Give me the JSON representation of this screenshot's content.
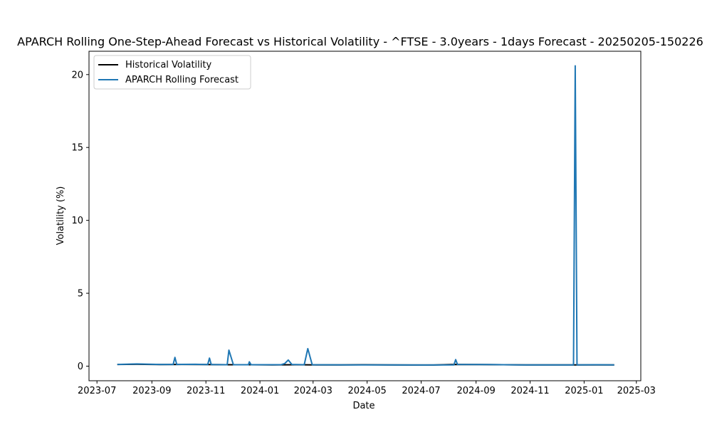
{
  "chart_data": {
    "type": "line",
    "title": "APARCH Rolling One-Step-Ahead Forecast vs Historical Volatility - ^FTSE - 3.0years - 1days Forecast - 20250205-150226",
    "xlabel": "Date",
    "ylabel": "Volatility (%)",
    "xlim": [
      "2023-06-22",
      "2025-03-06"
    ],
    "ylim": [
      -1.0,
      21.6
    ],
    "x_ticks": [
      "2023-07",
      "2023-09",
      "2023-11",
      "2024-01",
      "2024-03",
      "2024-05",
      "2024-07",
      "2024-09",
      "2024-11",
      "2025-01",
      "2025-03"
    ],
    "y_ticks": [
      0,
      5,
      10,
      15,
      20
    ],
    "legend": {
      "placement": "top-left",
      "entries": [
        "Historical Volatility",
        "APARCH Rolling Forecast"
      ]
    },
    "grid": false,
    "colors": {
      "historical": "#000000",
      "forecast": "#1f77b4"
    },
    "series": [
      {
        "name": "Historical Volatility",
        "color": "#000000",
        "points": [
          [
            "2023-07-24",
            0.12
          ],
          [
            "2023-08-15",
            0.13
          ],
          [
            "2023-09-10",
            0.11
          ],
          [
            "2023-10-05",
            0.12
          ],
          [
            "2023-10-31",
            0.11
          ],
          [
            "2023-11-25",
            0.1
          ],
          [
            "2023-12-20",
            0.1
          ],
          [
            "2024-01-15",
            0.09
          ],
          [
            "2024-02-10",
            0.1
          ],
          [
            "2024-03-05",
            0.09
          ],
          [
            "2024-04-01",
            0.09
          ],
          [
            "2024-04-28",
            0.1
          ],
          [
            "2024-05-25",
            0.09
          ],
          [
            "2024-06-20",
            0.08
          ],
          [
            "2024-07-15",
            0.08
          ],
          [
            "2024-08-08",
            0.12
          ],
          [
            "2024-09-05",
            0.11
          ],
          [
            "2024-10-01",
            0.1
          ],
          [
            "2024-10-28",
            0.09
          ],
          [
            "2024-11-22",
            0.09
          ],
          [
            "2024-12-18",
            0.09
          ],
          [
            "2025-01-10",
            0.09
          ],
          [
            "2025-02-04",
            0.09
          ]
        ]
      },
      {
        "name": "APARCH Rolling Forecast",
        "color": "#1f77b4",
        "points": [
          [
            "2023-07-24",
            0.12
          ],
          [
            "2023-08-15",
            0.15
          ],
          [
            "2023-09-10",
            0.12
          ],
          [
            "2023-09-25",
            0.12
          ],
          [
            "2023-09-27",
            0.6
          ],
          [
            "2023-09-29",
            0.12
          ],
          [
            "2023-10-20",
            0.13
          ],
          [
            "2023-11-03",
            0.11
          ],
          [
            "2023-11-05",
            0.55
          ],
          [
            "2023-11-07",
            0.11
          ],
          [
            "2023-11-25",
            0.1
          ],
          [
            "2023-11-27",
            1.1
          ],
          [
            "2023-12-02",
            0.1
          ],
          [
            "2023-12-19",
            0.1
          ],
          [
            "2023-12-20",
            0.3
          ],
          [
            "2023-12-22",
            0.1
          ],
          [
            "2024-01-25",
            0.1
          ],
          [
            "2024-01-29",
            0.18
          ],
          [
            "2024-02-02",
            0.42
          ],
          [
            "2024-02-06",
            0.12
          ],
          [
            "2024-02-20",
            0.1
          ],
          [
            "2024-02-24",
            1.2
          ],
          [
            "2024-02-29",
            0.1
          ],
          [
            "2024-04-10",
            0.09
          ],
          [
            "2024-05-20",
            0.09
          ],
          [
            "2024-07-05",
            0.08
          ],
          [
            "2024-08-07",
            0.09
          ],
          [
            "2024-08-09",
            0.45
          ],
          [
            "2024-08-11",
            0.12
          ],
          [
            "2024-09-15",
            0.11
          ],
          [
            "2024-10-20",
            0.09
          ],
          [
            "2024-12-10",
            0.09
          ],
          [
            "2024-12-20",
            0.09
          ],
          [
            "2024-12-22",
            20.6
          ],
          [
            "2024-12-24",
            0.09
          ],
          [
            "2025-01-15",
            0.1
          ],
          [
            "2025-02-04",
            0.09
          ]
        ]
      }
    ]
  }
}
